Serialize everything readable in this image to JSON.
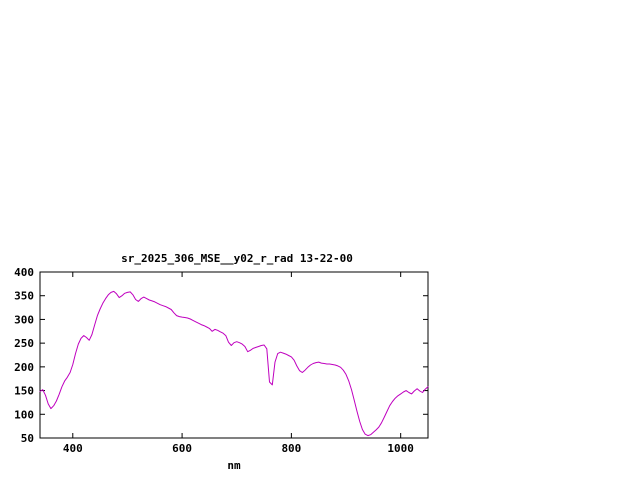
{
  "page": {
    "background": "#ffffff"
  },
  "chart_data": {
    "type": "line",
    "title": "sr_2025_306_MSE__y02_r_rad 13-22-00",
    "xlabel": "nm",
    "ylabel": "",
    "xlim": [
      340,
      1050
    ],
    "ylim": [
      50,
      400
    ],
    "xticks": [
      400,
      600,
      800,
      1000
    ],
    "yticks": [
      50,
      100,
      150,
      200,
      250,
      300,
      350,
      400
    ],
    "grid": false,
    "legend_position": "none",
    "line_color": "#bf00bf",
    "border_color": "#000000",
    "series": [
      {
        "name": "sr_2025_306_MSE__y02_r_rad",
        "x": [
          340,
          345,
          350,
          355,
          360,
          365,
          370,
          375,
          380,
          385,
          390,
          395,
          400,
          405,
          410,
          415,
          420,
          425,
          430,
          435,
          440,
          445,
          450,
          455,
          460,
          465,
          470,
          475,
          480,
          485,
          490,
          495,
          500,
          505,
          510,
          515,
          520,
          525,
          530,
          535,
          540,
          545,
          550,
          555,
          560,
          565,
          570,
          575,
          580,
          585,
          590,
          595,
          600,
          605,
          610,
          615,
          620,
          625,
          630,
          635,
          640,
          645,
          650,
          655,
          660,
          665,
          670,
          675,
          680,
          685,
          690,
          695,
          700,
          705,
          710,
          715,
          720,
          725,
          730,
          735,
          740,
          745,
          750,
          755,
          760,
          765,
          770,
          775,
          780,
          785,
          790,
          795,
          800,
          805,
          810,
          815,
          820,
          825,
          830,
          835,
          840,
          845,
          850,
          855,
          860,
          865,
          870,
          875,
          880,
          885,
          890,
          895,
          900,
          905,
          910,
          915,
          920,
          925,
          930,
          935,
          940,
          945,
          950,
          955,
          960,
          965,
          970,
          975,
          980,
          985,
          990,
          995,
          1000,
          1005,
          1010,
          1015,
          1020,
          1025,
          1030,
          1035,
          1040,
          1045,
          1050
        ],
        "y": [
          148,
          152,
          140,
          122,
          112,
          118,
          128,
          142,
          158,
          170,
          178,
          188,
          205,
          228,
          248,
          260,
          266,
          262,
          256,
          268,
          288,
          308,
          322,
          334,
          344,
          352,
          357,
          359,
          354,
          346,
          350,
          355,
          357,
          358,
          352,
          342,
          338,
          344,
          347,
          344,
          341,
          339,
          337,
          334,
          331,
          329,
          327,
          324,
          321,
          314,
          308,
          306,
          305,
          304,
          303,
          301,
          298,
          295,
          292,
          289,
          287,
          284,
          281,
          275,
          279,
          277,
          274,
          271,
          266,
          252,
          245,
          251,
          253,
          251,
          248,
          243,
          232,
          235,
          239,
          241,
          243,
          245,
          246,
          238,
          168,
          162,
          210,
          228,
          231,
          229,
          227,
          224,
          221,
          214,
          202,
          192,
          188,
          193,
          199,
          204,
          207,
          209,
          210,
          208,
          207,
          206,
          206,
          205,
          204,
          202,
          199,
          193,
          184,
          170,
          152,
          130,
          106,
          85,
          68,
          58,
          55,
          57,
          62,
          67,
          73,
          82,
          94,
          106,
          118,
          127,
          134,
          139,
          143,
          147,
          150,
          146,
          143,
          149,
          154,
          149,
          146,
          153,
          158
        ]
      }
    ]
  }
}
